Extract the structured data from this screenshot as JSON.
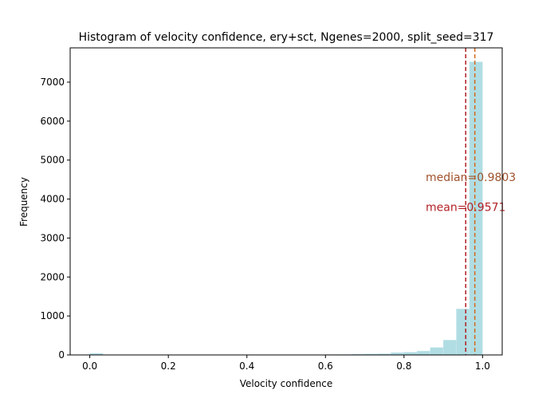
{
  "chart_data": {
    "type": "bar",
    "title": "Histogram of velocity confidence, ery+sct, Ngenes=2000, split_seed=317",
    "xlabel": "Velocity confidence",
    "ylabel": "Frequency",
    "xlim": [
      -0.05,
      1.05
    ],
    "ylim": [
      0,
      7880
    ],
    "xticks": [
      0.0,
      0.2,
      0.4,
      0.6,
      0.8,
      1.0
    ],
    "xtick_labels": [
      "0.0",
      "0.2",
      "0.4",
      "0.6",
      "0.8",
      "1.0"
    ],
    "yticks": [
      0,
      1000,
      2000,
      3000,
      4000,
      5000,
      6000,
      7000
    ],
    "ytick_labels": [
      "0",
      "1000",
      "2000",
      "3000",
      "4000",
      "5000",
      "6000",
      "7000"
    ],
    "bar_color": "#b0dde3",
    "bin_width": 0.0333,
    "bins": [
      {
        "x": 0.0,
        "value": 40
      },
      {
        "x": 0.0333,
        "value": 0
      },
      {
        "x": 0.0667,
        "value": 0
      },
      {
        "x": 0.1,
        "value": 0
      },
      {
        "x": 0.1333,
        "value": 0
      },
      {
        "x": 0.1667,
        "value": 0
      },
      {
        "x": 0.2,
        "value": 0
      },
      {
        "x": 0.2333,
        "value": 0
      },
      {
        "x": 0.2667,
        "value": 0
      },
      {
        "x": 0.3,
        "value": 0
      },
      {
        "x": 0.3333,
        "value": 0
      },
      {
        "x": 0.3667,
        "value": 0
      },
      {
        "x": 0.4,
        "value": 0
      },
      {
        "x": 0.4333,
        "value": 0
      },
      {
        "x": 0.4667,
        "value": 0
      },
      {
        "x": 0.5,
        "value": 0
      },
      {
        "x": 0.5333,
        "value": 0
      },
      {
        "x": 0.5667,
        "value": 5
      },
      {
        "x": 0.6,
        "value": 8
      },
      {
        "x": 0.6333,
        "value": 10
      },
      {
        "x": 0.6667,
        "value": 20
      },
      {
        "x": 0.7,
        "value": 25
      },
      {
        "x": 0.7333,
        "value": 30
      },
      {
        "x": 0.7667,
        "value": 60
      },
      {
        "x": 0.8,
        "value": 70
      },
      {
        "x": 0.8333,
        "value": 100
      },
      {
        "x": 0.8667,
        "value": 190
      },
      {
        "x": 0.9,
        "value": 380
      },
      {
        "x": 0.9333,
        "value": 1180
      },
      {
        "x": 0.9667,
        "value": 7520
      }
    ],
    "vlines": [
      {
        "label": "mean=0.9571",
        "x": 0.9571,
        "color": "#b21f24",
        "label_y": 3800
      },
      {
        "label": "median=0.9803",
        "x": 0.9803,
        "color": "#d2691e",
        "text_color": "#a0522d",
        "label_y": 4560
      }
    ],
    "grid": false
  }
}
